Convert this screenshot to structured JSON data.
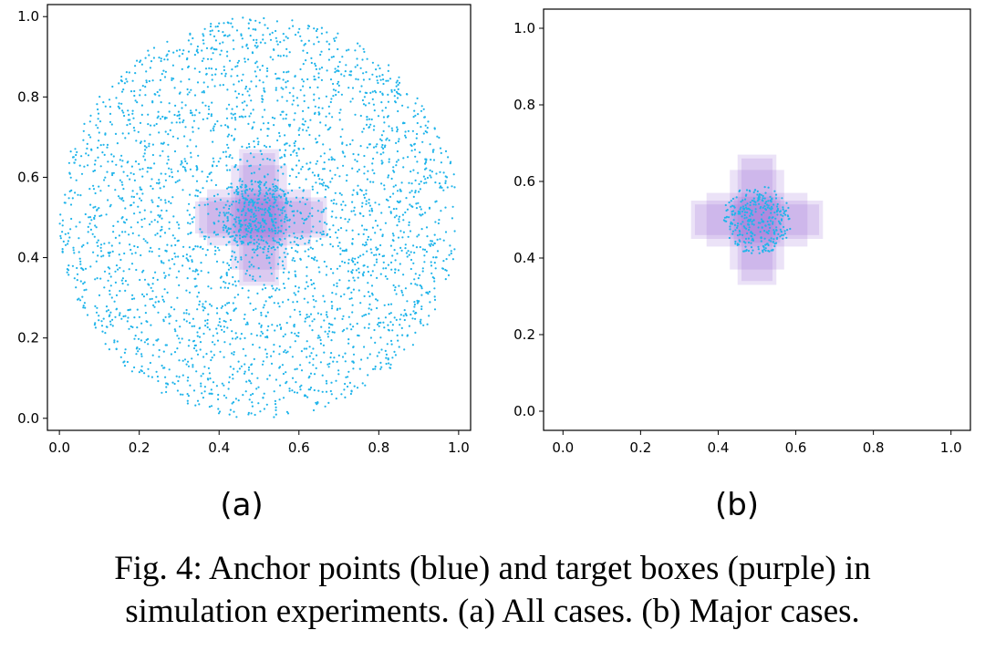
{
  "chart_data": [
    {
      "type": "scatter",
      "panel_label": "(a)",
      "title": "",
      "xlabel": "",
      "ylabel": "",
      "xlim": [
        -0.03,
        1.03
      ],
      "ylim": [
        -0.03,
        1.03
      ],
      "xticks": [
        "0.0",
        "0.2",
        "0.4",
        "0.6",
        "0.8",
        "1.0"
      ],
      "yticks": [
        "0.0",
        "0.2",
        "0.4",
        "0.6",
        "0.8",
        "1.0"
      ],
      "tick_values": [
        0.0,
        0.2,
        0.4,
        0.6,
        0.8,
        1.0
      ],
      "grid": false,
      "anchor_points": {
        "color": "#1fb4ea",
        "distribution": "uniform disk",
        "center": [
          0.5,
          0.5
        ],
        "radius": 0.5,
        "count": 3000
      },
      "target_boxes": {
        "color": "#9b6fd9",
        "boxes": [
          [
            0.35,
            0.45,
            0.67,
            0.55
          ],
          [
            0.34,
            0.46,
            0.66,
            0.54
          ],
          [
            0.45,
            0.33,
            0.55,
            0.67
          ],
          [
            0.46,
            0.34,
            0.54,
            0.66
          ],
          [
            0.37,
            0.43,
            0.63,
            0.57
          ],
          [
            0.43,
            0.37,
            0.57,
            0.63
          ],
          [
            0.44,
            0.44,
            0.56,
            0.56
          ]
        ],
        "dense_points": {
          "center": [
            0.5,
            0.5
          ],
          "radius": 0.09,
          "count": 300
        }
      }
    },
    {
      "type": "scatter",
      "panel_label": "(b)",
      "title": "",
      "xlabel": "",
      "ylabel": "",
      "xlim": [
        -0.05,
        1.05
      ],
      "ylim": [
        -0.05,
        1.05
      ],
      "xticks": [
        "0.0",
        "0.2",
        "0.4",
        "0.6",
        "0.8",
        "1.0"
      ],
      "yticks": [
        "0.0",
        "0.2",
        "0.4",
        "0.6",
        "0.8",
        "1.0"
      ],
      "tick_values": [
        0.0,
        0.2,
        0.4,
        0.6,
        0.8,
        1.0
      ],
      "grid": false,
      "anchor_points": {
        "color": "#1fb4ea",
        "distribution": "uniform disk",
        "center": [
          0.5,
          0.5
        ],
        "radius": 0.09,
        "count": 320
      },
      "target_boxes": {
        "color": "#9b6fd9",
        "boxes": [
          [
            0.33,
            0.45,
            0.67,
            0.55
          ],
          [
            0.34,
            0.46,
            0.66,
            0.54
          ],
          [
            0.45,
            0.33,
            0.55,
            0.67
          ],
          [
            0.46,
            0.34,
            0.54,
            0.66
          ],
          [
            0.37,
            0.43,
            0.63,
            0.57
          ],
          [
            0.43,
            0.37,
            0.57,
            0.63
          ],
          [
            0.44,
            0.44,
            0.56,
            0.56
          ]
        ]
      }
    }
  ],
  "caption": {
    "line1": "Fig. 4: Anchor points (blue) and target boxes (purple) in",
    "line2": "simulation experiments. (a) All cases. (b) Major cases."
  }
}
